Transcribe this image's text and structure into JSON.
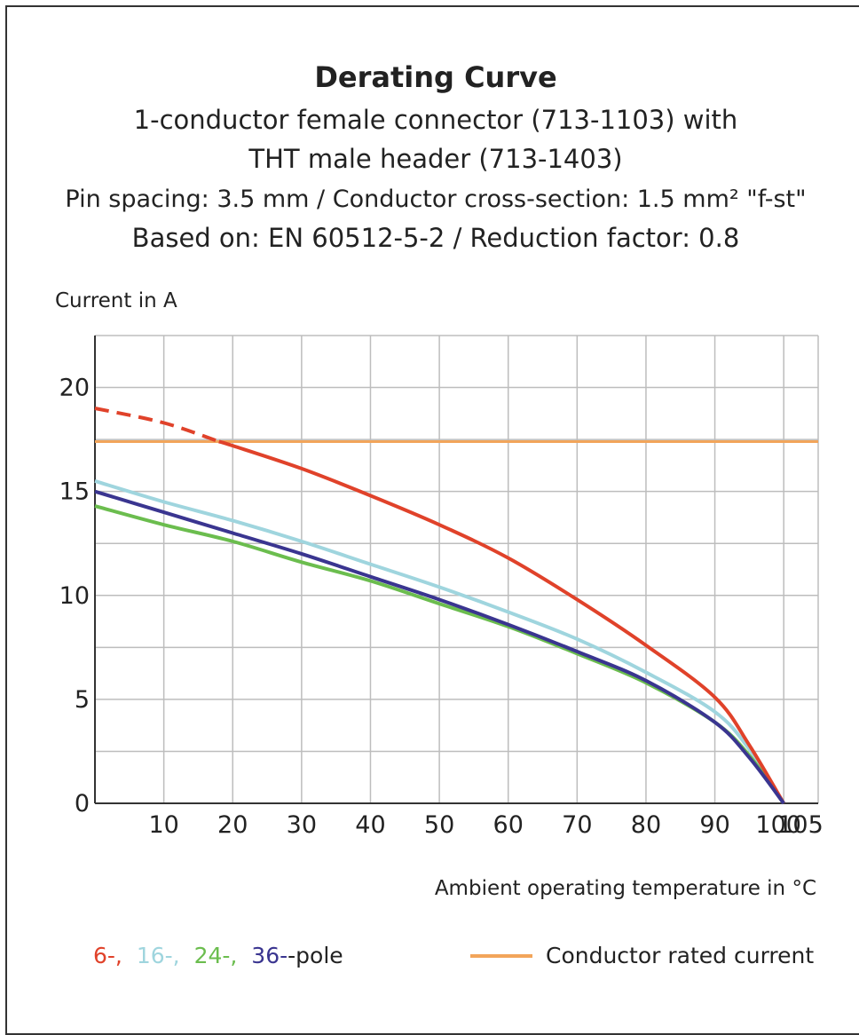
{
  "chart_data": {
    "type": "line",
    "title": "Derating Curve",
    "subtitle_lines": [
      "1-conductor female connector (713-1103) with",
      "THT male header (713-1403)",
      "Pin spacing: 3.5 mm / Conductor cross-section: 1.5 mm² \"f-st\"",
      "Based on: EN 60512-5-2 / Reduction factor: 0.8"
    ],
    "ylabel": "Current in A",
    "xlabel": "Ambient operating temperature in °C",
    "xlim": [
      0,
      105
    ],
    "ylim": [
      0,
      22.5
    ],
    "x_ticks": [
      10,
      20,
      30,
      40,
      50,
      60,
      70,
      80,
      90,
      100,
      105
    ],
    "y_ticks": [
      0,
      5,
      10,
      15,
      20
    ],
    "grid": true,
    "legend": {
      "poles": [
        {
          "label": "6-,",
          "color": "#e0422a"
        },
        {
          "label": "16-,",
          "color": "#9fd5de"
        },
        {
          "label": "24-,",
          "color": "#6bbd4e"
        },
        {
          "label": "36-",
          "color": "#3a3590"
        }
      ],
      "poles_suffix": "-pole",
      "rated_label": "Conductor rated current",
      "rated_color": "#f2a55a"
    },
    "rated_current": 17.4,
    "series": [
      {
        "color": "#e0422a",
        "dashed_until": 18,
        "points": [
          [
            0,
            19.0
          ],
          [
            10,
            18.3
          ],
          [
            18,
            17.4
          ],
          [
            20,
            17.2
          ],
          [
            30,
            16.1
          ],
          [
            40,
            14.8
          ],
          [
            50,
            13.4
          ],
          [
            60,
            11.8
          ],
          [
            70,
            9.8
          ],
          [
            80,
            7.6
          ],
          [
            90,
            5.1
          ],
          [
            95,
            2.8
          ],
          [
            100,
            0
          ]
        ]
      },
      {
        "color": "#9fd5de",
        "points": [
          [
            0,
            15.5
          ],
          [
            10,
            14.5
          ],
          [
            20,
            13.6
          ],
          [
            30,
            12.6
          ],
          [
            40,
            11.5
          ],
          [
            50,
            10.4
          ],
          [
            60,
            9.2
          ],
          [
            70,
            7.9
          ],
          [
            80,
            6.3
          ],
          [
            90,
            4.4
          ],
          [
            95,
            2.6
          ],
          [
            100,
            0
          ]
        ]
      },
      {
        "color": "#6bbd4e",
        "points": [
          [
            0,
            14.3
          ],
          [
            10,
            13.4
          ],
          [
            20,
            12.6
          ],
          [
            30,
            11.6
          ],
          [
            40,
            10.7
          ],
          [
            50,
            9.6
          ],
          [
            60,
            8.5
          ],
          [
            70,
            7.2
          ],
          [
            80,
            5.8
          ],
          [
            90,
            3.9
          ],
          [
            95,
            2.3
          ],
          [
            100,
            0
          ]
        ]
      },
      {
        "color": "#3a3590",
        "points": [
          [
            0,
            15.0
          ],
          [
            10,
            14.0
          ],
          [
            20,
            13.0
          ],
          [
            30,
            12.0
          ],
          [
            40,
            10.9
          ],
          [
            50,
            9.8
          ],
          [
            60,
            8.6
          ],
          [
            70,
            7.3
          ],
          [
            80,
            5.9
          ],
          [
            90,
            3.9
          ],
          [
            95,
            2.2
          ],
          [
            100,
            0
          ]
        ]
      }
    ]
  }
}
